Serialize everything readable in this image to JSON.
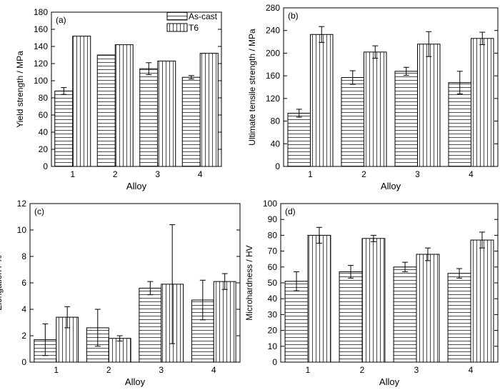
{
  "chart_data": [
    {
      "type": "bar",
      "panel_label": "(a)",
      "categories": [
        "1",
        "2",
        "3",
        "4"
      ],
      "xlabel": "Alloy",
      "ylabel": "Yield strength / MPa",
      "ylim": [
        0,
        180
      ],
      "yticks": [
        0,
        20,
        40,
        60,
        80,
        100,
        120,
        140,
        160,
        180
      ],
      "series": [
        {
          "name": "As-cast",
          "pattern": "horizontal-lines",
          "values": [
            88,
            130,
            114,
            104
          ],
          "errors": [
            4,
            0,
            7,
            2
          ]
        },
        {
          "name": "T6",
          "pattern": "vertical-lines",
          "values": [
            152,
            142,
            123,
            132
          ],
          "errors": [
            0,
            0,
            0,
            0
          ]
        }
      ],
      "legend": {
        "position": "top-right",
        "entries": [
          "As-cast",
          "T6"
        ]
      }
    },
    {
      "type": "bar",
      "panel_label": "(b)",
      "categories": [
        "1",
        "2",
        "3",
        "4"
      ],
      "xlabel": "Alloy",
      "ylabel": "Ultimate tensile strength / MPa",
      "ylim": [
        0,
        280
      ],
      "yticks": [
        0,
        40,
        80,
        120,
        160,
        200,
        240,
        280
      ],
      "series": [
        {
          "name": "As-cast",
          "pattern": "horizontal-lines",
          "values": [
            94,
            157,
            168,
            148
          ],
          "errors": [
            7,
            12,
            7,
            20
          ]
        },
        {
          "name": "T6",
          "pattern": "vertical-lines",
          "values": [
            233,
            202,
            216,
            226
          ],
          "errors": [
            14,
            11,
            22,
            11
          ]
        }
      ]
    },
    {
      "type": "bar",
      "panel_label": "(c)",
      "categories": [
        "1",
        "2",
        "3",
        "4"
      ],
      "xlabel": "Alloy",
      "ylabel": "Elongation / %",
      "ylim": [
        0,
        12
      ],
      "yticks": [
        0,
        2,
        4,
        6,
        8,
        10,
        12
      ],
      "series": [
        {
          "name": "As-cast",
          "pattern": "horizontal-lines",
          "values": [
            1.7,
            2.6,
            5.6,
            4.7
          ],
          "errors": [
            1.2,
            1.4,
            0.5,
            1.5
          ]
        },
        {
          "name": "T6",
          "pattern": "vertical-lines",
          "values": [
            3.4,
            1.8,
            5.9,
            6.1
          ],
          "errors": [
            0.8,
            0.2,
            4.5,
            0.6
          ]
        }
      ]
    },
    {
      "type": "bar",
      "panel_label": "(d)",
      "categories": [
        "1",
        "2",
        "3",
        "4"
      ],
      "xlabel": "Alloy",
      "ylabel": "Microhardness / HV",
      "ylim": [
        0,
        100
      ],
      "yticks": [
        0,
        10,
        20,
        30,
        40,
        50,
        60,
        70,
        80,
        90,
        100
      ],
      "series": [
        {
          "name": "As-cast",
          "pattern": "horizontal-lines",
          "values": [
            51,
            57,
            60,
            56
          ],
          "errors": [
            6,
            4,
            3,
            3
          ]
        },
        {
          "name": "T6",
          "pattern": "vertical-lines",
          "values": [
            80,
            78,
            68,
            77
          ],
          "errors": [
            5,
            2,
            4,
            5
          ]
        }
      ]
    }
  ]
}
